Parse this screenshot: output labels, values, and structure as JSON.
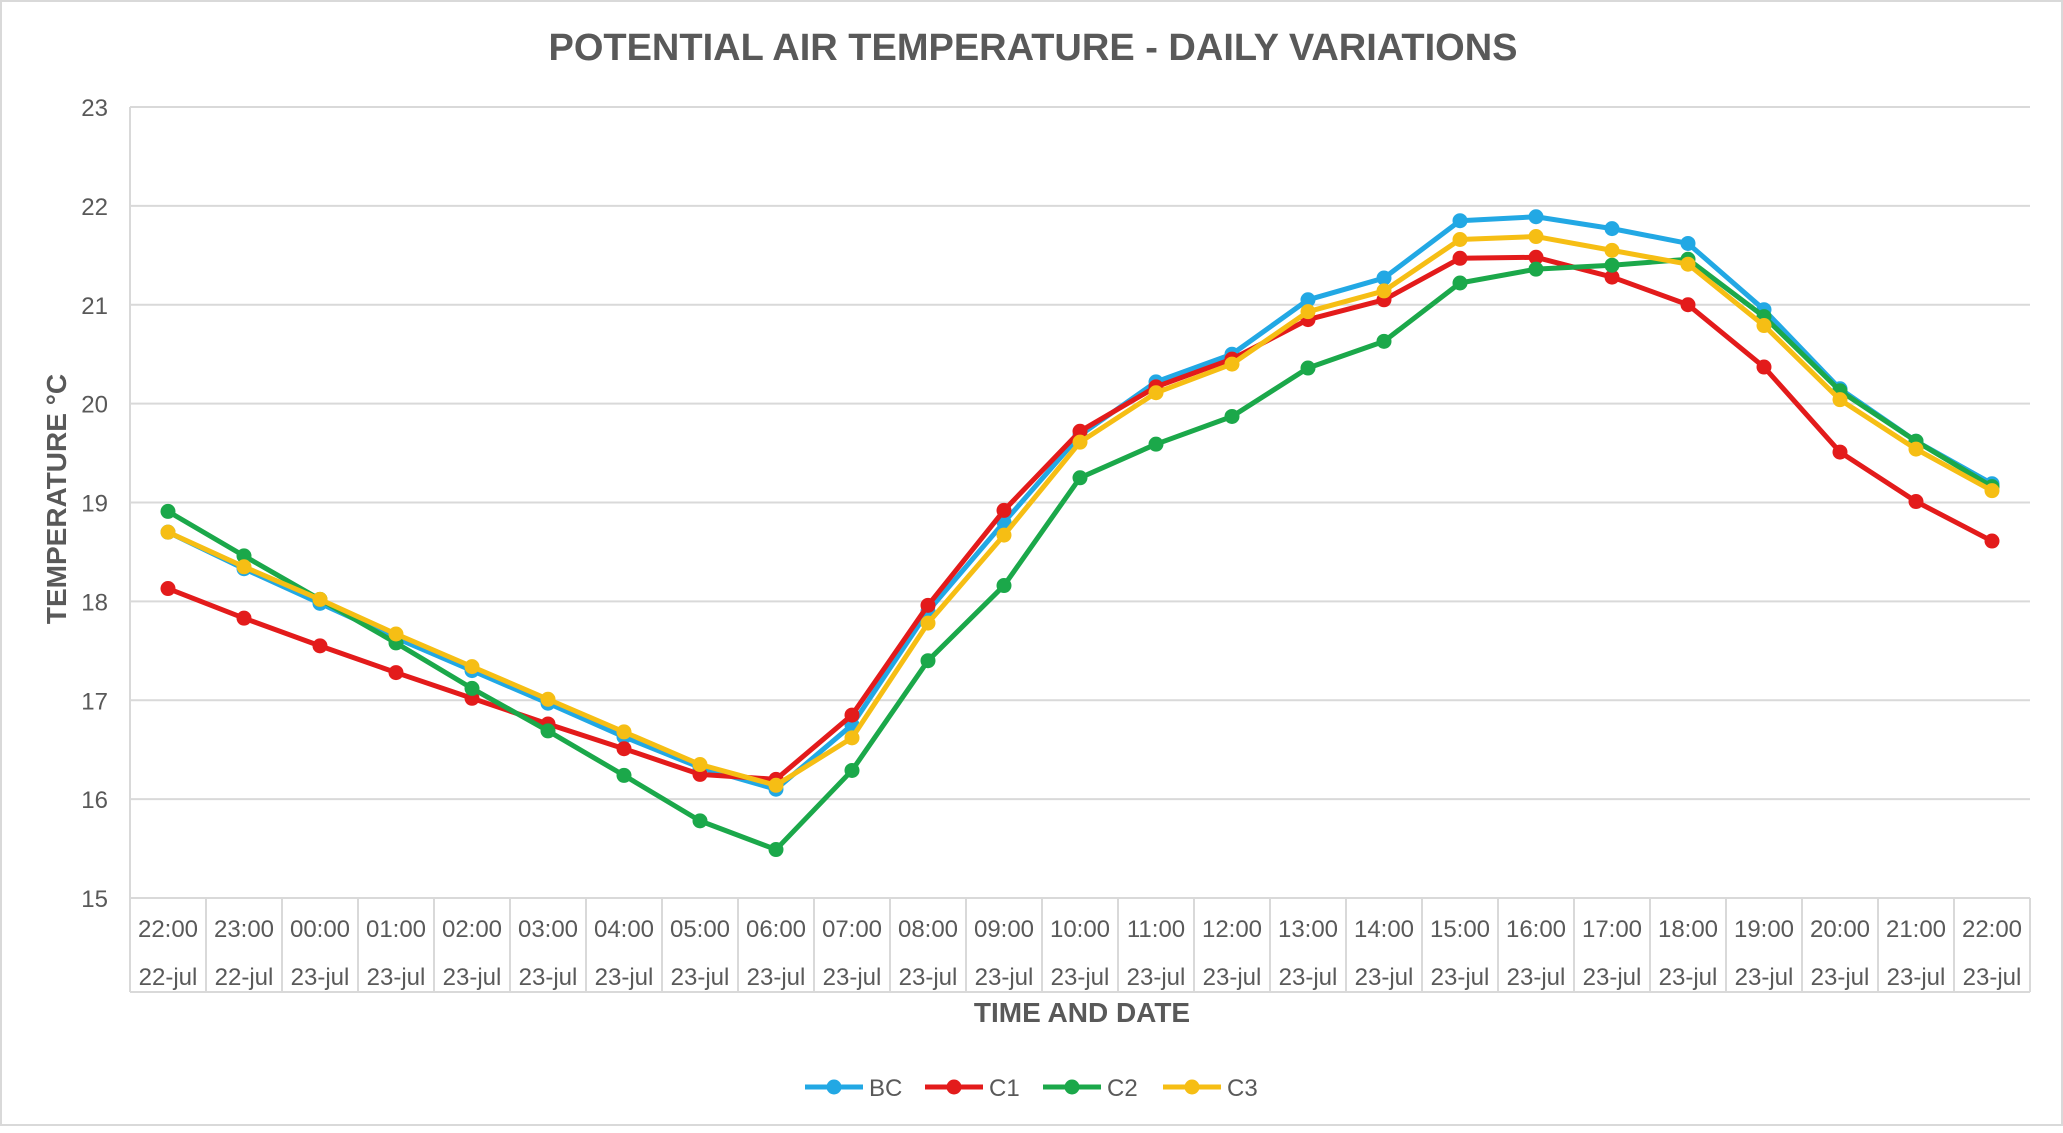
{
  "chart_data": {
    "type": "line",
    "title": "POTENTIAL AIR TEMPERATURE - DAILY VARIATIONS",
    "xlabel": "TIME AND DATE",
    "ylabel": "TEMPERATURE °C",
    "ylim": [
      15,
      23
    ],
    "yticks": [
      15,
      16,
      17,
      18,
      19,
      20,
      21,
      22,
      23
    ],
    "grid": true,
    "legend_position": "bottom",
    "categories": [
      {
        "time": "22:00",
        "date": "22-jul"
      },
      {
        "time": "23:00",
        "date": "22-jul"
      },
      {
        "time": "00:00",
        "date": "23-jul"
      },
      {
        "time": "01:00",
        "date": "23-jul"
      },
      {
        "time": "02:00",
        "date": "23-jul"
      },
      {
        "time": "03:00",
        "date": "23-jul"
      },
      {
        "time": "04:00",
        "date": "23-jul"
      },
      {
        "time": "05:00",
        "date": "23-jul"
      },
      {
        "time": "06:00",
        "date": "23-jul"
      },
      {
        "time": "07:00",
        "date": "23-jul"
      },
      {
        "time": "08:00",
        "date": "23-jul"
      },
      {
        "time": "09:00",
        "date": "23-jul"
      },
      {
        "time": "10:00",
        "date": "23-jul"
      },
      {
        "time": "11:00",
        "date": "23-jul"
      },
      {
        "time": "12:00",
        "date": "23-jul"
      },
      {
        "time": "13:00",
        "date": "23-jul"
      },
      {
        "time": "14:00",
        "date": "23-jul"
      },
      {
        "time": "15:00",
        "date": "23-jul"
      },
      {
        "time": "16:00",
        "date": "23-jul"
      },
      {
        "time": "17:00",
        "date": "23-jul"
      },
      {
        "time": "18:00",
        "date": "23-jul"
      },
      {
        "time": "19:00",
        "date": "23-jul"
      },
      {
        "time": "20:00",
        "date": "23-jul"
      },
      {
        "time": "21:00",
        "date": "23-jul"
      },
      {
        "time": "22:00",
        "date": "23-jul"
      }
    ],
    "series": [
      {
        "name": "BC",
        "color": "#22a8e4",
        "values": [
          18.7,
          18.33,
          17.98,
          17.63,
          17.3,
          16.97,
          16.63,
          16.32,
          16.1,
          16.75,
          17.9,
          18.8,
          19.68,
          20.22,
          20.5,
          21.05,
          21.27,
          21.85,
          21.89,
          21.77,
          21.62,
          20.95,
          20.15,
          19.62,
          19.19
        ]
      },
      {
        "name": "C1",
        "color": "#e31b1b",
        "values": [
          18.13,
          17.83,
          17.55,
          17.28,
          17.02,
          16.76,
          16.51,
          16.25,
          16.2,
          16.85,
          17.96,
          18.92,
          19.72,
          20.17,
          20.45,
          20.85,
          21.05,
          21.47,
          21.48,
          21.28,
          21.0,
          20.37,
          19.51,
          19.01,
          18.61
        ]
      },
      {
        "name": "C2",
        "color": "#1ba84a",
        "values": [
          18.91,
          18.46,
          18.02,
          17.58,
          17.12,
          16.69,
          16.24,
          15.78,
          15.49,
          16.29,
          17.4,
          18.16,
          19.25,
          19.59,
          19.87,
          20.36,
          20.63,
          21.22,
          21.36,
          21.4,
          21.46,
          20.88,
          20.13,
          19.62,
          19.16
        ]
      },
      {
        "name": "C3",
        "color": "#f6be14",
        "values": [
          18.7,
          18.35,
          18.02,
          17.67,
          17.34,
          17.01,
          16.68,
          16.35,
          16.14,
          16.62,
          17.78,
          18.67,
          19.61,
          20.11,
          20.4,
          20.93,
          21.14,
          21.66,
          21.69,
          21.55,
          21.41,
          20.79,
          20.04,
          19.54,
          19.12
        ]
      }
    ]
  }
}
